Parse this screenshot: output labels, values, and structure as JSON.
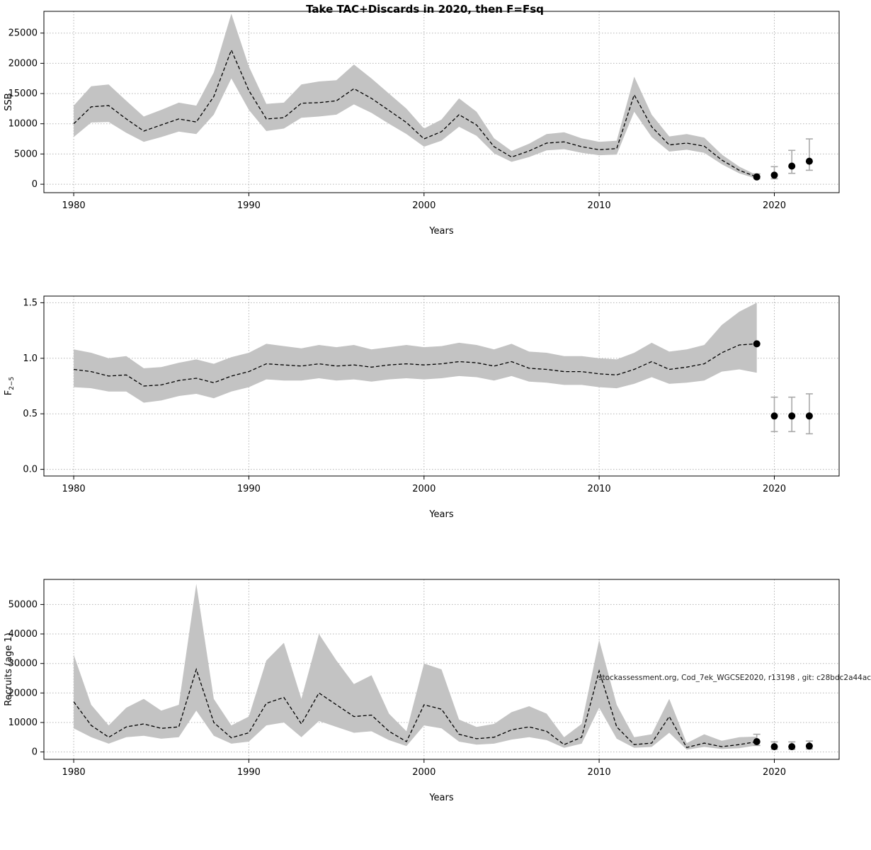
{
  "title": "Take TAC+Discards in 2020, then F=Fsq",
  "watermark": "stockassessment.org, Cod_7ek_WGCSE2020, r13198 , git: c28bdc2a44ac",
  "colors": {
    "band": "#c3c3c3",
    "line": "#000000",
    "grid": "#b3b3b3",
    "errorbar": "#a9a9a9",
    "dot": "#000000",
    "box": "#000000"
  },
  "chart_data": [
    {
      "type": "line",
      "name": "ssb",
      "xlabel": "Years",
      "ylabel": "SSB",
      "ylabel_sub": "",
      "xlim": [
        1978.3,
        2023.7
      ],
      "ylim": [
        -1400,
        28600
      ],
      "xticks": [
        1980,
        1990,
        2000,
        2010,
        2020
      ],
      "yticks": [
        0,
        5000,
        10000,
        15000,
        20000,
        25000
      ],
      "ytick_labels": [
        "0",
        "5000",
        "10000",
        "15000",
        "20000",
        "25000"
      ],
      "years": [
        1980,
        1981,
        1982,
        1983,
        1984,
        1985,
        1986,
        1987,
        1988,
        1989,
        1990,
        1991,
        1992,
        1993,
        1994,
        1995,
        1996,
        1997,
        1998,
        1999,
        2000,
        2001,
        2002,
        2003,
        2004,
        2005,
        2006,
        2007,
        2008,
        2009,
        2010,
        2011,
        2012,
        2013,
        2014,
        2015,
        2016,
        2017,
        2018,
        2019
      ],
      "median": [
        10000,
        12800,
        13000,
        10800,
        8800,
        9800,
        10800,
        10300,
        14500,
        22200,
        15500,
        10800,
        11000,
        13400,
        13500,
        13800,
        15800,
        14200,
        12200,
        10200,
        7500,
        8700,
        11500,
        9800,
        6200,
        4500,
        5500,
        6800,
        7000,
        6200,
        5700,
        5900,
        14800,
        9500,
        6500,
        6800,
        6300,
        4000,
        2300,
        1200
      ],
      "band_lo": [
        7800,
        10200,
        10300,
        8500,
        7000,
        7800,
        8700,
        8300,
        11500,
        17500,
        12300,
        8800,
        9200,
        11000,
        11200,
        11500,
        13200,
        11800,
        10000,
        8300,
        6200,
        7200,
        9500,
        8000,
        5100,
        3700,
        4500,
        5600,
        5800,
        5200,
        4800,
        4900,
        12000,
        7800,
        5400,
        5700,
        5200,
        3300,
        1800,
        900
      ],
      "band_hi": [
        13000,
        16200,
        16500,
        13800,
        11200,
        12300,
        13500,
        13000,
        18500,
        28200,
        19500,
        13300,
        13500,
        16500,
        17000,
        17200,
        19800,
        17500,
        15000,
        12500,
        9200,
        10700,
        14200,
        12000,
        7600,
        5500,
        6700,
        8300,
        8600,
        7600,
        7000,
        7200,
        17800,
        11500,
        7900,
        8300,
        7700,
        4900,
        2900,
        1500
      ],
      "points": [
        {
          "year": 2019,
          "value": 1200,
          "lo": 900,
          "hi": 1700
        },
        {
          "year": 2020,
          "value": 1500,
          "lo": 900,
          "hi": 2900
        },
        {
          "year": 2021,
          "value": 3000,
          "lo": 1800,
          "hi": 5600
        },
        {
          "year": 2022,
          "value": 3800,
          "lo": 2300,
          "hi": 7500
        }
      ]
    },
    {
      "type": "line",
      "name": "fbar",
      "xlabel": "Years",
      "ylabel": "F",
      "ylabel_sub": "2−5",
      "xlim": [
        1978.3,
        2023.7
      ],
      "ylim": [
        -0.06,
        1.56
      ],
      "xticks": [
        1980,
        1990,
        2000,
        2010,
        2020
      ],
      "yticks": [
        0.0,
        0.5,
        1.0,
        1.5
      ],
      "ytick_labels": [
        "0.0",
        "0.5",
        "1.0",
        "1.5"
      ],
      "years": [
        1980,
        1981,
        1982,
        1983,
        1984,
        1985,
        1986,
        1987,
        1988,
        1989,
        1990,
        1991,
        1992,
        1993,
        1994,
        1995,
        1996,
        1997,
        1998,
        1999,
        2000,
        2001,
        2002,
        2003,
        2004,
        2005,
        2006,
        2007,
        2008,
        2009,
        2010,
        2011,
        2012,
        2013,
        2014,
        2015,
        2016,
        2017,
        2018,
        2019
      ],
      "median": [
        0.9,
        0.88,
        0.84,
        0.85,
        0.75,
        0.76,
        0.8,
        0.82,
        0.78,
        0.84,
        0.88,
        0.95,
        0.94,
        0.93,
        0.95,
        0.93,
        0.94,
        0.92,
        0.94,
        0.95,
        0.94,
        0.95,
        0.97,
        0.96,
        0.93,
        0.97,
        0.91,
        0.9,
        0.88,
        0.88,
        0.86,
        0.85,
        0.9,
        0.97,
        0.9,
        0.92,
        0.95,
        1.05,
        1.12,
        1.13
      ],
      "band_lo": [
        0.74,
        0.73,
        0.7,
        0.7,
        0.6,
        0.62,
        0.66,
        0.68,
        0.64,
        0.7,
        0.74,
        0.81,
        0.8,
        0.8,
        0.82,
        0.8,
        0.81,
        0.79,
        0.81,
        0.82,
        0.81,
        0.82,
        0.84,
        0.83,
        0.8,
        0.84,
        0.79,
        0.78,
        0.76,
        0.76,
        0.74,
        0.73,
        0.77,
        0.83,
        0.77,
        0.78,
        0.8,
        0.88,
        0.9,
        0.87
      ],
      "band_hi": [
        1.08,
        1.05,
        1.0,
        1.02,
        0.91,
        0.92,
        0.96,
        0.99,
        0.95,
        1.01,
        1.05,
        1.13,
        1.11,
        1.09,
        1.12,
        1.1,
        1.12,
        1.08,
        1.1,
        1.12,
        1.1,
        1.11,
        1.14,
        1.12,
        1.08,
        1.13,
        1.06,
        1.05,
        1.02,
        1.02,
        1.0,
        0.99,
        1.05,
        1.14,
        1.06,
        1.08,
        1.12,
        1.3,
        1.42,
        1.5
      ],
      "points": [
        {
          "year": 2019,
          "value": 1.13
        },
        {
          "year": 2020,
          "value": 0.48,
          "lo": 0.34,
          "hi": 0.65
        },
        {
          "year": 2021,
          "value": 0.48,
          "lo": 0.34,
          "hi": 0.65
        },
        {
          "year": 2022,
          "value": 0.48,
          "lo": 0.32,
          "hi": 0.68
        }
      ]
    },
    {
      "type": "line",
      "name": "recruits",
      "xlabel": "Years",
      "ylabel": "Recruits (age 1)",
      "ylabel_sub": "",
      "xlim": [
        1978.3,
        2023.7
      ],
      "ylim": [
        -2500,
        58500
      ],
      "xticks": [
        1980,
        1990,
        2000,
        2010,
        2020
      ],
      "yticks": [
        0,
        10000,
        20000,
        30000,
        40000,
        50000
      ],
      "ytick_labels": [
        "0",
        "10000",
        "20000",
        "30000",
        "40000",
        "50000"
      ],
      "years": [
        1980,
        1981,
        1982,
        1983,
        1984,
        1985,
        1986,
        1987,
        1988,
        1989,
        1990,
        1991,
        1992,
        1993,
        1994,
        1995,
        1996,
        1997,
        1998,
        1999,
        2000,
        2001,
        2002,
        2003,
        2004,
        2005,
        2006,
        2007,
        2008,
        2009,
        2010,
        2011,
        2012,
        2013,
        2014,
        2015,
        2016,
        2017,
        2018,
        2019
      ],
      "median": [
        17000,
        9000,
        5000,
        8500,
        9500,
        8000,
        8500,
        28000,
        10000,
        4800,
        6500,
        16500,
        18500,
        9500,
        20000,
        16000,
        12000,
        12500,
        7000,
        3500,
        16000,
        14500,
        6000,
        4500,
        5000,
        7500,
        8500,
        7000,
        2500,
        5000,
        27500,
        8500,
        2500,
        3000,
        12000,
        1500,
        3000,
        1800,
        2500,
        3500
      ],
      "band_lo": [
        8000,
        5000,
        2800,
        5000,
        5500,
        4500,
        5000,
        14000,
        5500,
        2800,
        3500,
        9000,
        10000,
        5000,
        10500,
        8500,
        6500,
        7000,
        4000,
        2000,
        9000,
        8000,
        3500,
        2500,
        2800,
        4200,
        5000,
        4000,
        1400,
        2800,
        15000,
        4500,
        1400,
        1700,
        6500,
        800,
        1700,
        1000,
        1300,
        2200
      ],
      "band_hi": [
        33000,
        16000,
        9000,
        15000,
        18000,
        14000,
        16000,
        57000,
        18000,
        9000,
        12000,
        31000,
        37000,
        18000,
        40000,
        31000,
        23000,
        26000,
        13000,
        7000,
        30000,
        28000,
        11000,
        8500,
        9500,
        13500,
        15500,
        13000,
        5000,
        9500,
        38000,
        16000,
        5000,
        6000,
        18000,
        3000,
        6000,
        3800,
        5000,
        5200
      ],
      "points": [
        {
          "year": 2019,
          "value": 3500,
          "lo": 2200,
          "hi": 6000
        },
        {
          "year": 2020,
          "value": 1800,
          "lo": 900,
          "hi": 3400
        },
        {
          "year": 2021,
          "value": 1800,
          "lo": 900,
          "hi": 3400
        },
        {
          "year": 2022,
          "value": 2000,
          "lo": 1000,
          "hi": 3700
        }
      ]
    }
  ]
}
